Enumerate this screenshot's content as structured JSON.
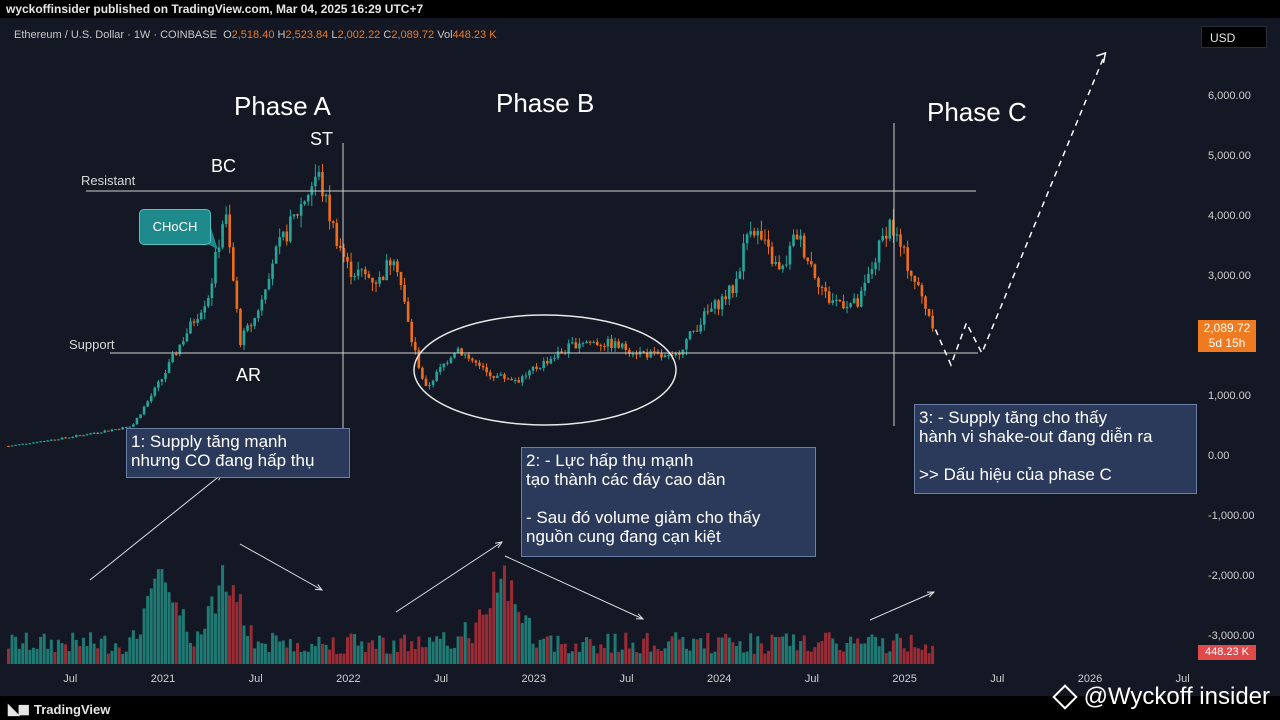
{
  "header": {
    "publisher": "wyckoffinsider published on TradingView.com, Mar 04, 2025 16:29 UTC+7"
  },
  "legend": {
    "symbol": "Ethereum / U.S. Dollar · 1W · COINBASE",
    "o_label": "O",
    "o": "2,518.40",
    "h_label": "H",
    "h": "2,523.84",
    "l_label": "L",
    "l": "2,002.22",
    "c_label": "C",
    "c": "2,089.72",
    "vol_label": "Vol",
    "vol": "448.23 K"
  },
  "currency": "USD",
  "price_tag": {
    "price": "2,089.72",
    "countdown": "5d 15h"
  },
  "volume_tag": "448.23 K",
  "annotations": {
    "phase_a": "Phase A",
    "phase_b": "Phase B",
    "phase_c": "Phase C",
    "st": "ST",
    "bc": "BC",
    "ar": "AR",
    "resistant": "Resistant",
    "support": "Support",
    "choch": "CHoCH",
    "note1": "1: Supply tăng mạnh\nnhưng CO đang hấp thụ",
    "note2": "2: - Lực hấp thụ mạnh\ntạo thành các đáy cao dần\n\n- Sau đó volume giảm cho thấy\nnguồn cung đang cạn kiệt",
    "note3": "3: - Supply tăng cho thấy\nhành vi shake-out đang diễn ra\n\n>> Dấu hiệu của phase C"
  },
  "footer": {
    "brand": "TradingView",
    "watermark": "@Wyckoff insider"
  },
  "colors": {
    "up": "#26a69a",
    "down": "#ef6c1a",
    "vol_up": "#1f7a74",
    "vol_down": "#9a2c36",
    "background": "#141824",
    "line": "#d0d0d0"
  },
  "chart_data": {
    "type": "candlestick",
    "title": "Ethereum / U.S. Dollar · 1W · COINBASE",
    "y_ticks": [
      "6,000.00",
      "5,000.00",
      "4,000.00",
      "3,000.00",
      "2,000.00",
      "1,000.00",
      "0.00",
      "-1,000.00",
      "-2,000.00",
      "-3,000.00"
    ],
    "y_tick_values": [
      6000,
      5000,
      4000,
      3000,
      2000,
      1000,
      0,
      -1000,
      -2000,
      -3000
    ],
    "ylim": [
      -3400,
      6800
    ],
    "x_ticks": [
      "Jul",
      "2021",
      "Jul",
      "2022",
      "Jul",
      "2023",
      "Jul",
      "2024",
      "Jul",
      "2025",
      "Jul",
      "2026",
      "Jul"
    ],
    "x_tick_dates": [
      "2020-07",
      "2021-01",
      "2021-07",
      "2022-01",
      "2022-07",
      "2023-01",
      "2023-07",
      "2024-01",
      "2024-07",
      "2025-01",
      "2025-07",
      "2026-01",
      "2026-07"
    ],
    "levels": {
      "resistant": 4400,
      "support": 1700
    },
    "price_path": [
      [
        "2020-03",
        150
      ],
      [
        "2020-07",
        300
      ],
      [
        "2020-11",
        480
      ],
      [
        "2021-01",
        1300
      ],
      [
        "2021-02",
        1800
      ],
      [
        "2021-04",
        2700
      ],
      [
        "2021-05",
        4100
      ],
      [
        "2021-06",
        1900
      ],
      [
        "2021-07",
        2300
      ],
      [
        "2021-08",
        3200
      ],
      [
        "2021-09",
        3700
      ],
      [
        "2021-11",
        4700
      ],
      [
        "2021-12",
        3800
      ],
      [
        "2022-01",
        3100
      ],
      [
        "2022-03",
        2900
      ],
      [
        "2022-04",
        3400
      ],
      [
        "2022-05",
        2000
      ],
      [
        "2022-06",
        1100
      ],
      [
        "2022-08",
        1800
      ],
      [
        "2022-10",
        1350
      ],
      [
        "2022-12",
        1250
      ],
      [
        "2023-02",
        1600
      ],
      [
        "2023-04",
        1900
      ],
      [
        "2023-06",
        1850
      ],
      [
        "2023-08",
        1700
      ],
      [
        "2023-10",
        1600
      ],
      [
        "2023-12",
        2300
      ],
      [
        "2024-02",
        2800
      ],
      [
        "2024-03",
        3900
      ],
      [
        "2024-05",
        3000
      ],
      [
        "2024-06",
        3700
      ],
      [
        "2024-08",
        2600
      ],
      [
        "2024-10",
        2500
      ],
      [
        "2024-12",
        3900
      ],
      [
        "2025-01",
        3300
      ],
      [
        "2025-02",
        2700
      ],
      [
        "2025-03",
        2090
      ]
    ],
    "projection": [
      [
        "2025-03",
        2090
      ],
      [
        "2025-04",
        1500
      ],
      [
        "2025-05",
        2200
      ],
      [
        "2025-06",
        1700
      ],
      [
        "2026-02",
        6700
      ]
    ],
    "volume_peaks": [
      [
        "2021-01",
        "high"
      ],
      [
        "2021-05",
        "high"
      ],
      [
        "2022-11",
        "high"
      ]
    ]
  }
}
